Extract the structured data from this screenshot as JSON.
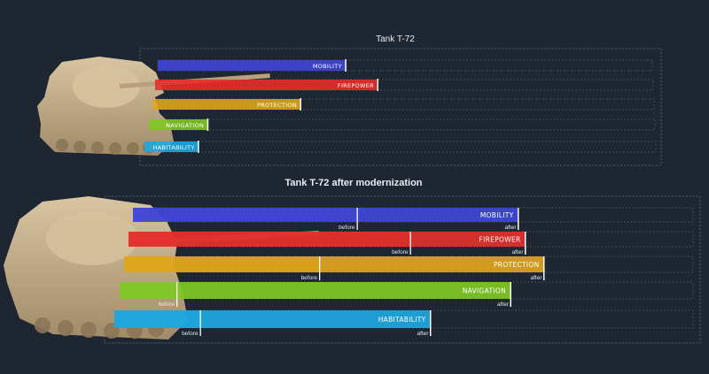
{
  "colors": {
    "background": "#1d2631",
    "mobility": "#3f46d6",
    "firepower": "#e3302b",
    "protection": "#dfa51c",
    "navigation": "#7fc824",
    "habitability": "#1ea8e0",
    "tank": "#cbb390"
  },
  "chart_data": [
    {
      "type": "bar",
      "orientation": "horizontal",
      "title": "Tank T-72",
      "categories": [
        "MOBILITY",
        "FIREPOWER",
        "PROTECTION",
        "NAVIGATION",
        "HABITABILITY"
      ],
      "series": [
        {
          "values": [
            38,
            45,
            30,
            12,
            11
          ]
        }
      ],
      "xlim": [
        0,
        100
      ],
      "grid": true,
      "legend": "none"
    },
    {
      "type": "bar",
      "orientation": "horizontal",
      "title": "Tank T-72 after modernization",
      "categories": [
        "MOBILITY",
        "FIREPOWER",
        "PROTECTION",
        "NAVIGATION",
        "HABITABILITY"
      ],
      "series": [
        {
          "name": "before",
          "values": [
            39,
            49,
            34,
            10,
            15
          ]
        },
        {
          "name": "after",
          "values": [
            67,
            69,
            73,
            68,
            55
          ]
        }
      ],
      "marker_labels": {
        "before": "before",
        "after": "after"
      },
      "xlim": [
        0,
        100
      ],
      "grid": true,
      "legend": "none"
    }
  ]
}
